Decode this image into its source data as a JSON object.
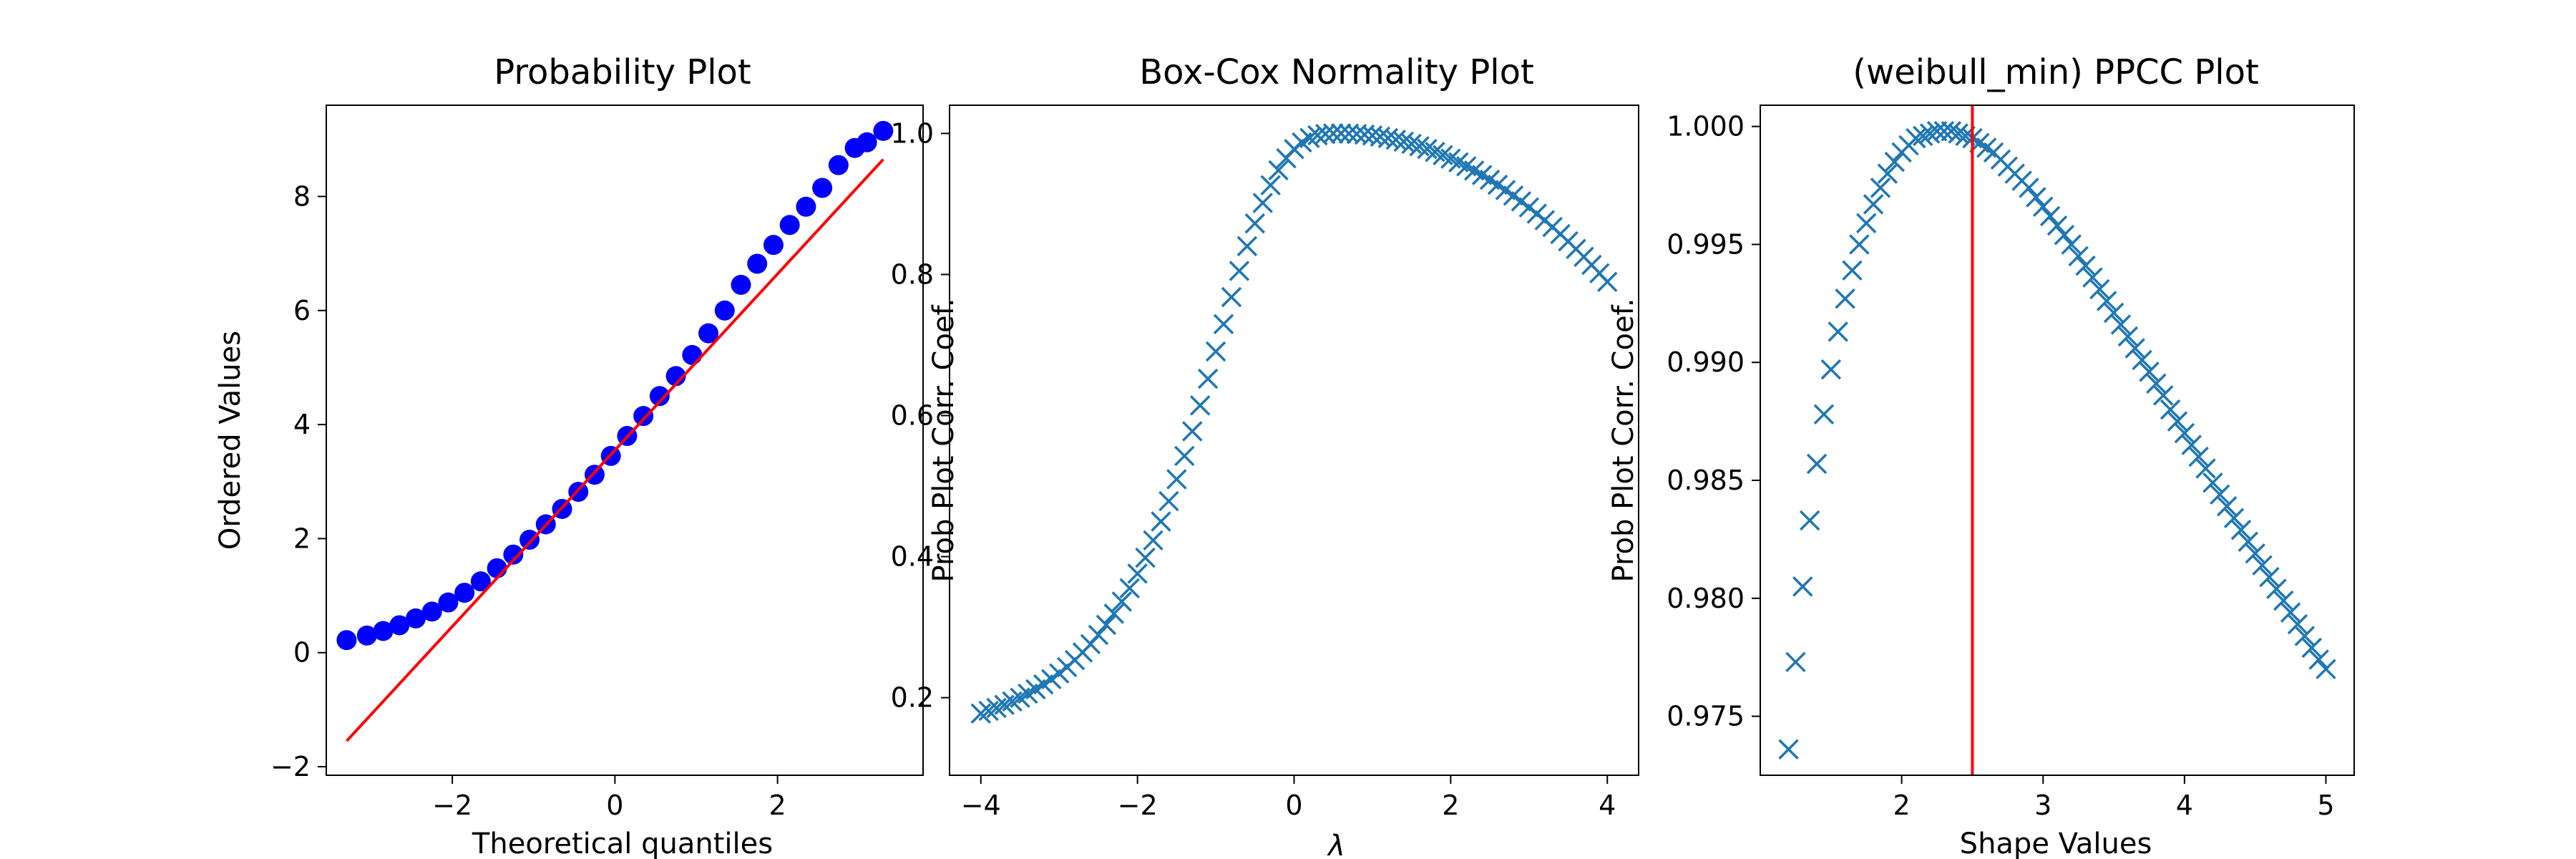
{
  "colors": {
    "marker": "#1f77b4",
    "dot": "#0000ff",
    "fit": "#ff0000",
    "axes": "#000000",
    "background": "#ffffff"
  },
  "chart_data": [
    {
      "type": "scatter",
      "title": "Probability Plot",
      "xlabel": "Theoretical quantiles",
      "ylabel": "Ordered Values",
      "xlim": [
        -3.55,
        3.79
      ],
      "ylim": [
        -2.15,
        9.6
      ],
      "xticks": [
        -2,
        0,
        2
      ],
      "yticks": [
        -2,
        0,
        2,
        4,
        6,
        8
      ],
      "xtick_labels": [
        "−2",
        "0",
        "2"
      ],
      "ytick_labels": [
        "−2",
        "0",
        "2",
        "4",
        "6",
        "8"
      ],
      "grid": false,
      "marker": "circle",
      "series": [
        {
          "x": [
            -3.3,
            -3.05,
            -2.85,
            -2.65,
            -2.45,
            -2.25,
            -2.05,
            -1.85,
            -1.65,
            -1.45,
            -1.25,
            -1.05,
            -0.85,
            -0.65,
            -0.45,
            -0.25,
            -0.05,
            0.15,
            0.35,
            0.55,
            0.75,
            0.95,
            1.15,
            1.35,
            1.55,
            1.75,
            1.95,
            2.15,
            2.35,
            2.55,
            2.75,
            2.95,
            3.1,
            3.3
          ],
          "y": [
            0.22,
            0.3,
            0.38,
            0.48,
            0.6,
            0.72,
            0.88,
            1.05,
            1.25,
            1.48,
            1.72,
            1.98,
            2.25,
            2.52,
            2.82,
            3.12,
            3.45,
            3.8,
            4.15,
            4.5,
            4.85,
            5.22,
            5.6,
            6.0,
            6.45,
            6.82,
            7.15,
            7.5,
            7.82,
            8.15,
            8.55,
            8.85,
            8.95,
            9.15
          ]
        },
        {
          "name": "",
          "type": "line",
          "x": [
            -3.3,
            3.3
          ],
          "y": [
            -1.55,
            8.65
          ]
        }
      ]
    },
    {
      "type": "scatter",
      "title": "Box-Cox Normality Plot",
      "xlabel": "λ",
      "ylabel": "Prob Plot Corr. Coef.",
      "xlim": [
        -4.4,
        4.4
      ],
      "ylim": [
        0.09,
        1.04
      ],
      "xticks": [
        -4,
        -2,
        0,
        2,
        4
      ],
      "yticks": [
        0.2,
        0.4,
        0.6,
        0.8,
        1.0
      ],
      "xtick_labels": [
        "−4",
        "−2",
        "0",
        "2",
        "4"
      ],
      "ytick_labels": [
        "0.2",
        "0.4",
        "0.6",
        "0.8",
        "1.0"
      ],
      "grid": false,
      "marker": "x",
      "peak_lambda": 0.6,
      "x_range": [
        -4,
        4
      ],
      "n_points": 81
    },
    {
      "type": "scatter",
      "title": "(weibull_min) PPCC Plot",
      "xlabel": "Shape Values",
      "ylabel": "Prob Plot Corr. Coef.",
      "xlim": [
        1.0,
        5.2
      ],
      "ylim": [
        0.9725,
        1.0009
      ],
      "xticks": [
        2,
        3,
        4,
        5
      ],
      "yticks": [
        0.975,
        0.98,
        0.985,
        0.99,
        0.995,
        1.0
      ],
      "xtick_labels": [
        "2",
        "3",
        "4",
        "5"
      ],
      "ytick_labels": [
        "0.975",
        "0.980",
        "0.985",
        "0.990",
        "0.995",
        "1.000"
      ],
      "grid": false,
      "marker": "x",
      "vline_x": 2.5,
      "series": [
        {
          "x": [
            1.2,
            1.25,
            1.3,
            1.35,
            1.4,
            1.45,
            1.5,
            1.55,
            1.6,
            1.65,
            1.7,
            1.75,
            1.8,
            1.85,
            1.9,
            1.95,
            2.0,
            2.05,
            2.1,
            2.15,
            2.2,
            2.25,
            2.3,
            2.35,
            2.4,
            2.45,
            2.5,
            2.55,
            2.6,
            2.65,
            2.7,
            2.75,
            2.8,
            2.85,
            2.9,
            2.95,
            3.0,
            3.05,
            3.1,
            3.15,
            3.2,
            3.25,
            3.3,
            3.35,
            3.4,
            3.45,
            3.5,
            3.55,
            3.6,
            3.65,
            3.7,
            3.75,
            3.8,
            3.85,
            3.9,
            3.95,
            4.0,
            4.05,
            4.1,
            4.15,
            4.2,
            4.25,
            4.3,
            4.35,
            4.4,
            4.45,
            4.5,
            4.55,
            4.6,
            4.65,
            4.7,
            4.75,
            4.8,
            4.85,
            4.9,
            4.95,
            5.0
          ],
          "y": [
            0.9736,
            0.9773,
            0.9805,
            0.9833,
            0.9857,
            0.9878,
            0.9897,
            0.9913,
            0.9927,
            0.9939,
            0.995,
            0.9959,
            0.9967,
            0.9974,
            0.998,
            0.9985,
            0.9989,
            0.9992,
            0.9995,
            0.9996,
            0.9997,
            0.9998,
            0.9998,
            0.9998,
            0.9997,
            0.9996,
            0.9995,
            0.9993,
            0.9991,
            0.9989,
            0.9986,
            0.9983,
            0.998,
            0.9977,
            0.9974,
            0.997,
            0.9966,
            0.9962,
            0.9958,
            0.9954,
            0.995,
            0.9945,
            0.9941,
            0.9936,
            0.9931,
            0.9926,
            0.9921,
            0.9916,
            0.9911,
            0.9906,
            0.9901,
            0.9896,
            0.9891,
            0.9886,
            0.988,
            0.9875,
            0.987,
            0.9865,
            0.986,
            0.9855,
            0.9849,
            0.9844,
            0.9839,
            0.9834,
            0.9829,
            0.9824,
            0.9819,
            0.9814,
            0.9809,
            0.9804,
            0.9799,
            0.9794,
            0.9789,
            0.9784,
            0.9779,
            0.9774,
            0.977
          ]
        }
      ]
    }
  ]
}
